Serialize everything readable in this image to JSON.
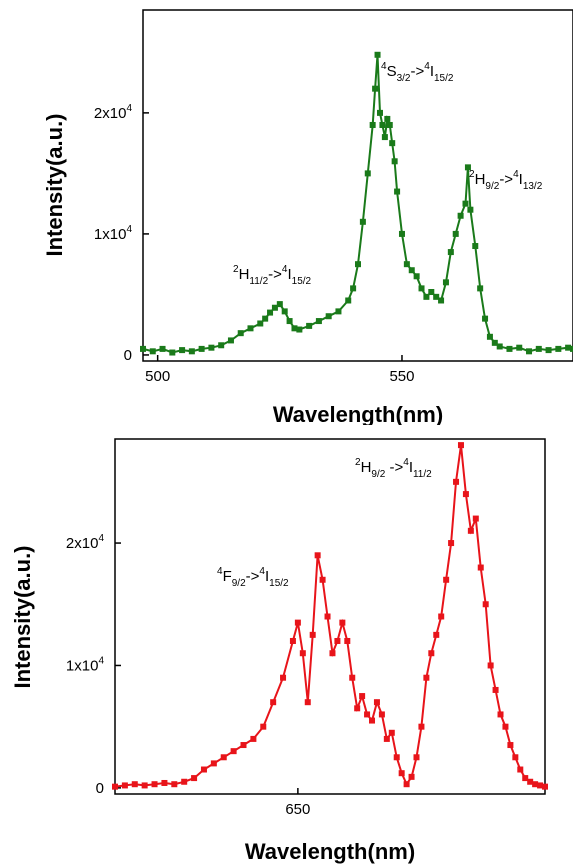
{
  "chart_data": [
    {
      "type": "line",
      "xlabel": "Wavelength(nm)",
      "ylabel": "Intensity(a.u.)",
      "xlim": [
        497,
        585
      ],
      "ylim": [
        -500,
        28500
      ],
      "xticks": [
        500,
        550
      ],
      "xtick_labels": [
        "500",
        "550"
      ],
      "yticks": [
        0,
        10000,
        20000
      ],
      "ytick_labels": [
        {
          "mant": "0",
          "exp": ""
        },
        {
          "mant": "1x10",
          "exp": "4"
        },
        {
          "mant": "2x10",
          "exp": "4"
        }
      ],
      "color": "#1a7a1a",
      "series": [
        {
          "x": [
            497,
            499,
            501,
            503,
            505,
            507,
            509,
            511,
            513,
            515,
            517,
            519,
            521,
            522,
            523,
            524,
            525,
            526,
            527,
            528,
            529,
            531,
            533,
            535,
            537,
            539,
            540,
            541,
            542,
            543,
            544,
            544.5,
            545,
            545.5,
            546,
            546.5,
            547,
            547.5,
            548,
            548.5,
            549,
            550,
            551,
            552,
            553,
            554,
            555,
            556,
            557,
            558,
            559,
            560,
            561,
            562,
            563,
            563.5,
            564,
            565,
            566,
            567,
            568,
            569,
            570,
            572,
            574,
            576,
            578,
            580,
            582,
            584,
            585
          ],
          "y": [
            500,
            300,
            500,
            200,
            400,
            300,
            500,
            600,
            800,
            1200,
            1800,
            2200,
            2600,
            3000,
            3500,
            3900,
            4200,
            3600,
            2800,
            2200,
            2100,
            2400,
            2800,
            3200,
            3600,
            4500,
            5500,
            7500,
            11000,
            15000,
            19000,
            22000,
            24800,
            20000,
            19000,
            18000,
            19500,
            19000,
            17500,
            16000,
            13500,
            10000,
            7500,
            7000,
            6500,
            5500,
            4800,
            5200,
            4800,
            4500,
            6000,
            8500,
            10000,
            11500,
            12500,
            15500,
            12000,
            9000,
            5500,
            3000,
            1500,
            1000,
            700,
            500,
            600,
            300,
            500,
            400,
            500,
            600,
            500
          ]
        }
      ]
    },
    {
      "type": "line",
      "xlabel": "Wavelength(nm)",
      "ylabel": "Intensity(a.u.)",
      "xlim": [
        613,
        700
      ],
      "ylim": [
        -500,
        28500
      ],
      "xticks": [
        650
      ],
      "xtick_labels": [
        "650"
      ],
      "yticks": [
        0,
        10000,
        20000
      ],
      "ytick_labels": [
        {
          "mant": "0",
          "exp": ""
        },
        {
          "mant": "1x10",
          "exp": "4"
        },
        {
          "mant": "2x10",
          "exp": "4"
        }
      ],
      "color": "#e8141a",
      "series": [
        {
          "x": [
            613,
            615,
            617,
            619,
            621,
            623,
            625,
            627,
            629,
            631,
            633,
            635,
            637,
            639,
            641,
            643,
            645,
            647,
            649,
            650,
            651,
            652,
            653,
            654,
            655,
            656,
            657,
            658,
            659,
            660,
            661,
            662,
            663,
            664,
            665,
            666,
            667,
            668,
            669,
            670,
            671,
            672,
            673,
            674,
            675,
            676,
            677,
            678,
            679,
            680,
            681,
            682,
            683,
            684,
            685,
            686,
            687,
            688,
            689,
            690,
            691,
            692,
            693,
            694,
            695,
            696,
            697,
            698,
            699,
            700
          ],
          "y": [
            100,
            200,
            300,
            200,
            300,
            400,
            300,
            500,
            800,
            1500,
            2000,
            2500,
            3000,
            3500,
            4000,
            5000,
            7000,
            9000,
            12000,
            13500,
            11000,
            7000,
            12500,
            19000,
            17000,
            14000,
            11000,
            12000,
            13500,
            12000,
            9000,
            6500,
            7500,
            6000,
            5500,
            7000,
            6000,
            4000,
            4500,
            2500,
            1200,
            300,
            900,
            2500,
            5000,
            9000,
            11000,
            12500,
            14000,
            17000,
            20000,
            25000,
            28000,
            24000,
            21000,
            22000,
            18000,
            15000,
            10000,
            8000,
            6000,
            5000,
            3500,
            2500,
            1500,
            800,
            500,
            300,
            200,
            100
          ]
        }
      ]
    }
  ],
  "annotations_top": [
    {
      "lead": "4",
      "main": "S",
      "sub": "3/2",
      "arrow": "->",
      "lead2": "4",
      "main2": "I",
      "sub2": "15/2"
    },
    {
      "lead": "2",
      "main": "H",
      "sub": "9/2",
      "arrow": "->",
      "lead2": "4",
      "main2": "I",
      "sub2": "13/2"
    },
    {
      "lead": "2",
      "main": "H",
      "sub": "11/2",
      "arrow": "->",
      "lead2": "4",
      "main2": "I",
      "sub2": "15/2"
    }
  ],
  "annotations_bottom": [
    {
      "lead": "4",
      "main": "F",
      "sub": "9/2",
      "arrow": "->",
      "lead2": "4",
      "main2": "I",
      "sub2": "15/2"
    },
    {
      "lead": "2",
      "main": "H",
      "sub": "9/2",
      "arrow": " ->",
      "lead2": "4",
      "main2": "I",
      "sub2": "11/2"
    }
  ]
}
